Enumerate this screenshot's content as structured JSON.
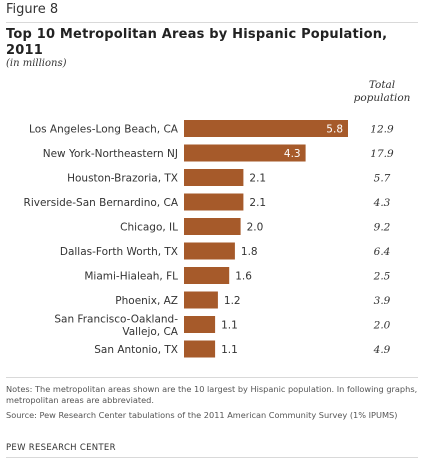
{
  "figure_label": "Figure 8",
  "title": "Top 10 Metropolitan Areas by Hispanic Population, 2011",
  "subtitle": "(in millions)",
  "total_header": "Total population",
  "notes": "Notes: The metropolitan areas shown are the 10 largest by Hispanic population. In following graphs, metropolitan areas are abbreviated.",
  "source": "Source: Pew Research Center tabulations of the 2011 American Community Survey (1% IPUMS)",
  "credit": "PEW RESEARCH CENTER",
  "colors": {
    "bar": "#a65a2a"
  },
  "chart_data": {
    "type": "bar",
    "orientation": "horizontal",
    "title": "Top 10 Metropolitan Areas by Hispanic Population, 2011",
    "unit": "(in millions)",
    "categories": [
      "Los Angeles-Long Beach, CA",
      "New York-Northeastern NJ",
      "Houston-Brazoria, TX",
      "Riverside-San Bernardino, CA",
      "Chicago, IL",
      "Dallas-Forth Worth, TX",
      "Miami-Hialeah, FL",
      "Phoenix, AZ",
      "San Francisco-Oakland-Vallejo, CA",
      "San Antonio, TX"
    ],
    "category_lines": [
      [
        "Los Angeles-Long Beach, CA"
      ],
      [
        "New York-Northeastern NJ"
      ],
      [
        "Houston-Brazoria, TX"
      ],
      [
        "Riverside-San Bernardino, CA"
      ],
      [
        "Chicago, IL"
      ],
      [
        "Dallas-Forth Worth, TX"
      ],
      [
        "Miami-Hialeah, FL"
      ],
      [
        "Phoenix, AZ"
      ],
      [
        "San Francisco-Oakland-",
        "Vallejo, CA"
      ],
      [
        "San Antonio, TX"
      ]
    ],
    "values": [
      5.8,
      4.3,
      2.1,
      2.1,
      2.0,
      1.8,
      1.6,
      1.2,
      1.1,
      1.1
    ],
    "value_labels": [
      "5.8",
      "4.3",
      "2.1",
      "2.1",
      "2.0",
      "1.8",
      "1.6",
      "1.2",
      "1.1",
      "1.1"
    ],
    "total_population_header": "Total population",
    "total_population": [
      "12.9",
      "17.9",
      "5.7",
      "4.3",
      "9.2",
      "6.4",
      "2.5",
      "3.9",
      "2.0",
      "4.9"
    ],
    "xlim": [
      0,
      5.8
    ],
    "grid": false,
    "legend": "none"
  }
}
